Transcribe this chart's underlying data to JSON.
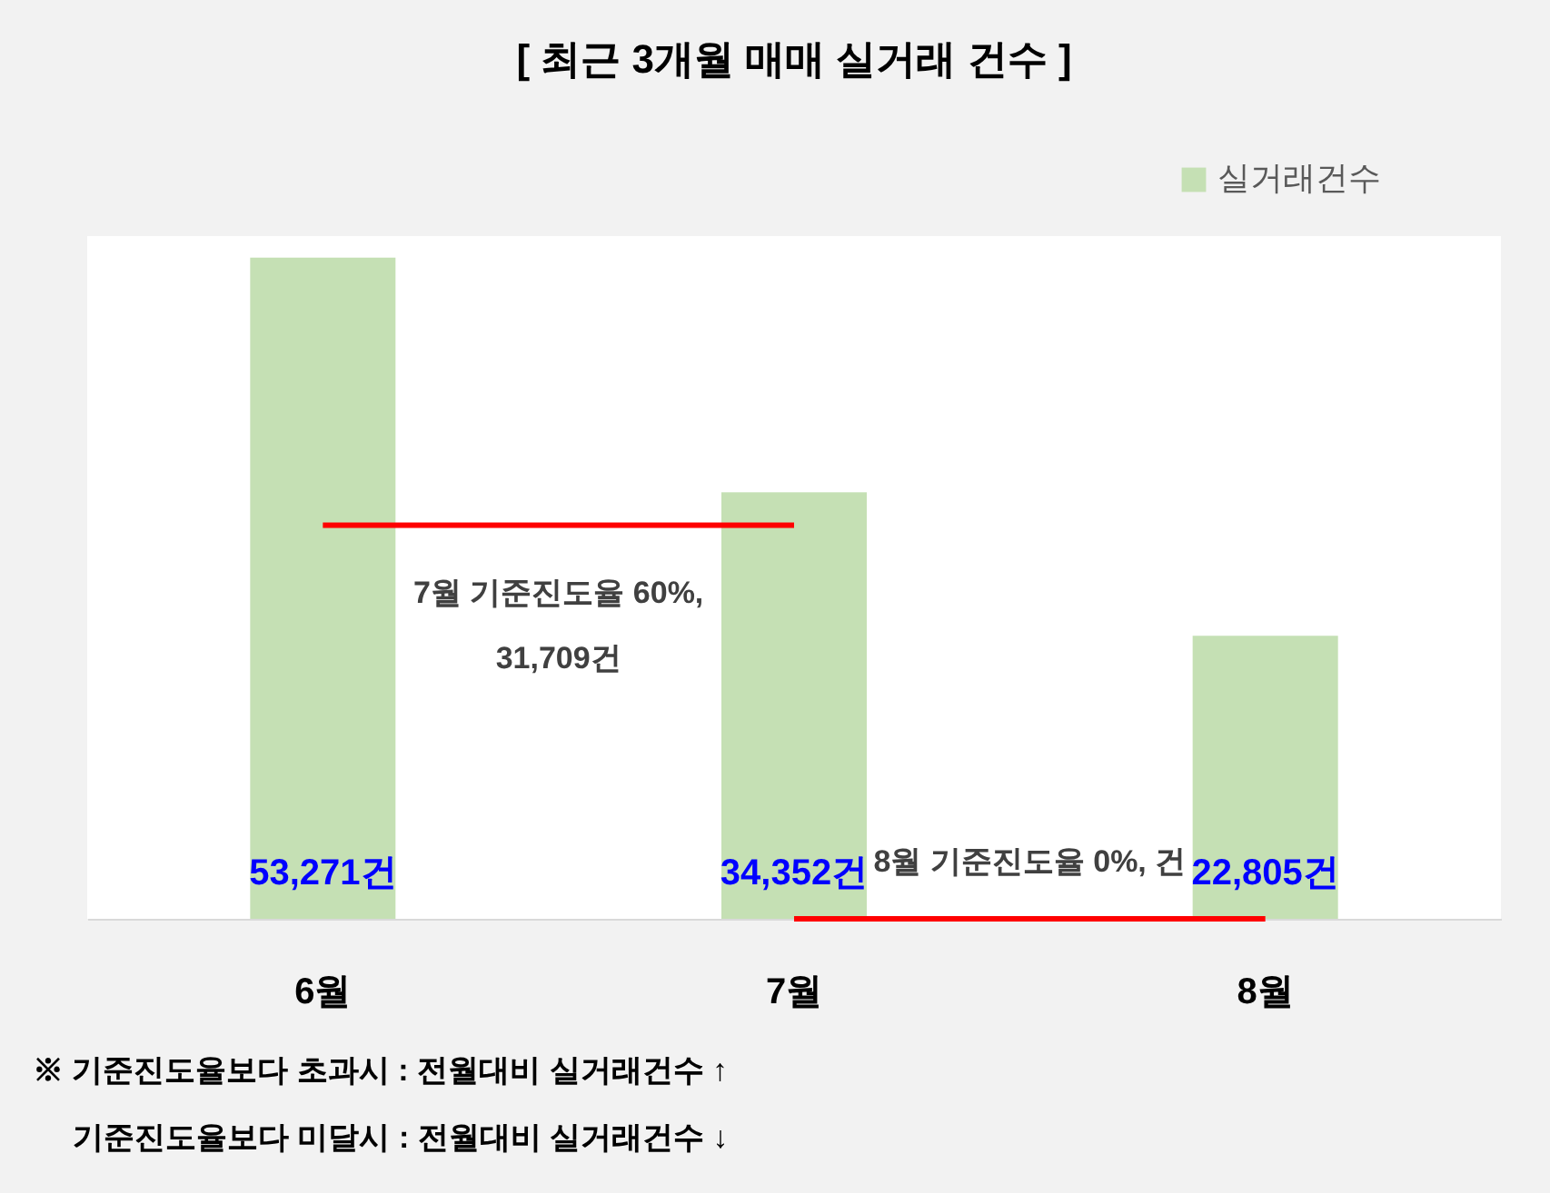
{
  "chart_data": {
    "type": "bar",
    "title": "[ 최근 3개월  매매 실거래 건수 ]",
    "categories": [
      "6월",
      "7월",
      "8월"
    ],
    "series": [
      {
        "name": "실거래건수",
        "color": "#c5e0b4",
        "values": [
          53271,
          34352,
          22805
        ],
        "value_labels": [
          "53,271건",
          "34,352건",
          "22,805건"
        ]
      }
    ],
    "ref_lines": [
      {
        "axis": "y",
        "value": 31709,
        "label": "7월 기준진도율 60%,\n31,709건",
        "color": "#ff0000"
      },
      {
        "axis": "y",
        "value": 0,
        "label": "8월 기준진도율 0%, 건",
        "color": "#ff0000"
      }
    ],
    "annotations": [
      "※ 기준진도율보다 초과시 : 전월대비 실거래건수 ↑",
      "기준진도율보다 미달시 : 전월대비 실거래건수 ↓"
    ],
    "legend": "top right",
    "grid": false
  }
}
